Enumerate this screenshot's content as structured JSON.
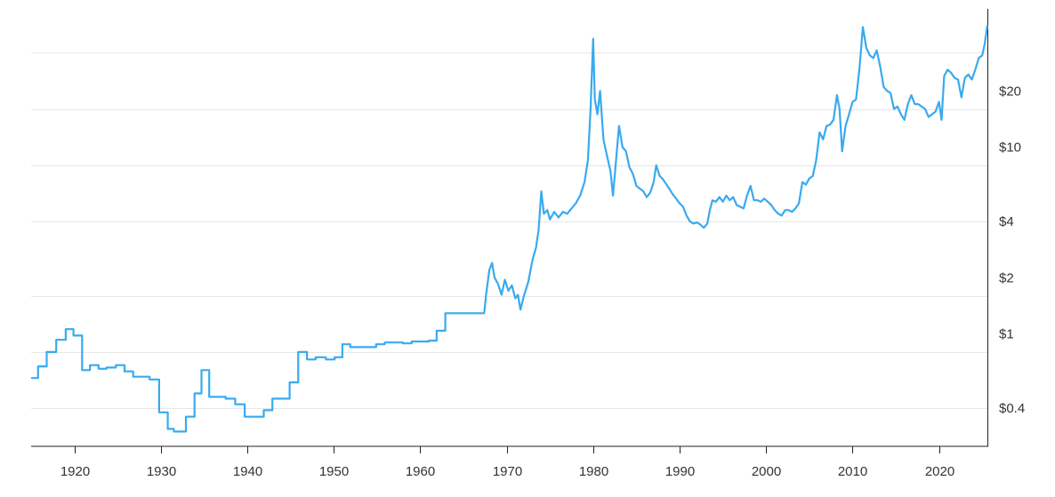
{
  "chart_data": {
    "type": "line",
    "title": "",
    "xlabel": "",
    "ylabel": "",
    "y_scale": "log",
    "x_range": [
      1915,
      2025.6
    ],
    "y_range": [
      0.25,
      55
    ],
    "x_ticks": [
      {
        "value": 1920,
        "label": "1920"
      },
      {
        "value": 1930,
        "label": "1930"
      },
      {
        "value": 1940,
        "label": "1940"
      },
      {
        "value": 1950,
        "label": "1950"
      },
      {
        "value": 1960,
        "label": "1960"
      },
      {
        "value": 1970,
        "label": "1970"
      },
      {
        "value": 1980,
        "label": "1980"
      },
      {
        "value": 1990,
        "label": "1990"
      },
      {
        "value": 2000,
        "label": "2000"
      },
      {
        "value": 2010,
        "label": "2010"
      },
      {
        "value": 2020,
        "label": "2020"
      }
    ],
    "y_ticks": [
      {
        "value": 0.4,
        "label": "$0.4"
      },
      {
        "value": 1,
        "label": "$1"
      },
      {
        "value": 2,
        "label": "$2"
      },
      {
        "value": 4,
        "label": "$4"
      },
      {
        "value": 10,
        "label": "$10"
      },
      {
        "value": 20,
        "label": "$20"
      }
    ],
    "grid_values": [
      0.4,
      0.8,
      1.6,
      4,
      8,
      16,
      32
    ],
    "grid": true,
    "y_axis_position": "right",
    "line_color": "#38aaef",
    "series": [
      {
        "values": [
          [
            1915.0,
            0.58
          ],
          [
            1915.8,
            0.58
          ],
          [
            1915.8,
            0.67
          ],
          [
            1916.8,
            0.67
          ],
          [
            1916.8,
            0.8
          ],
          [
            1917.9,
            0.8
          ],
          [
            1917.9,
            0.93
          ],
          [
            1919.0,
            0.93
          ],
          [
            1919.0,
            1.06
          ],
          [
            1919.9,
            1.06
          ],
          [
            1919.9,
            0.98
          ],
          [
            1920.9,
            0.98
          ],
          [
            1920.9,
            0.64
          ],
          [
            1921.8,
            0.64
          ],
          [
            1921.8,
            0.68
          ],
          [
            1922.8,
            0.68
          ],
          [
            1922.8,
            0.65
          ],
          [
            1923.7,
            0.65
          ],
          [
            1923.7,
            0.66
          ],
          [
            1924.8,
            0.66
          ],
          [
            1924.8,
            0.68
          ],
          [
            1925.8,
            0.68
          ],
          [
            1925.8,
            0.63
          ],
          [
            1926.8,
            0.63
          ],
          [
            1926.8,
            0.59
          ],
          [
            1928.7,
            0.59
          ],
          [
            1928.7,
            0.57
          ],
          [
            1929.8,
            0.57
          ],
          [
            1929.8,
            0.38
          ],
          [
            1930.8,
            0.38
          ],
          [
            1930.8,
            0.31
          ],
          [
            1931.5,
            0.31
          ],
          [
            1931.5,
            0.3
          ],
          [
            1932.9,
            0.3
          ],
          [
            1932.9,
            0.36
          ],
          [
            1933.9,
            0.36
          ],
          [
            1933.9,
            0.48
          ],
          [
            1934.7,
            0.48
          ],
          [
            1934.7,
            0.64
          ],
          [
            1935.6,
            0.64
          ],
          [
            1935.6,
            0.46
          ],
          [
            1937.5,
            0.46
          ],
          [
            1937.5,
            0.45
          ],
          [
            1938.6,
            0.45
          ],
          [
            1938.6,
            0.42
          ],
          [
            1939.7,
            0.42
          ],
          [
            1939.7,
            0.36
          ],
          [
            1941.9,
            0.36
          ],
          [
            1941.9,
            0.39
          ],
          [
            1942.9,
            0.39
          ],
          [
            1942.9,
            0.45
          ],
          [
            1944.9,
            0.45
          ],
          [
            1944.9,
            0.55
          ],
          [
            1945.9,
            0.55
          ],
          [
            1945.9,
            0.8
          ],
          [
            1946.9,
            0.8
          ],
          [
            1946.9,
            0.73
          ],
          [
            1947.9,
            0.73
          ],
          [
            1947.9,
            0.75
          ],
          [
            1949.1,
            0.75
          ],
          [
            1949.1,
            0.73
          ],
          [
            1950.1,
            0.73
          ],
          [
            1950.1,
            0.75
          ],
          [
            1951.0,
            0.75
          ],
          [
            1951.0,
            0.88
          ],
          [
            1951.9,
            0.88
          ],
          [
            1951.9,
            0.85
          ],
          [
            1954.9,
            0.85
          ],
          [
            1954.9,
            0.88
          ],
          [
            1955.9,
            0.88
          ],
          [
            1955.9,
            0.9
          ],
          [
            1958.0,
            0.9
          ],
          [
            1958.0,
            0.89
          ],
          [
            1959.0,
            0.89
          ],
          [
            1959.0,
            0.91
          ],
          [
            1961.0,
            0.91
          ],
          [
            1961.0,
            0.92
          ],
          [
            1961.9,
            0.92
          ],
          [
            1961.9,
            1.04
          ],
          [
            1962.9,
            1.04
          ],
          [
            1962.9,
            1.29
          ],
          [
            1967.4,
            1.29
          ],
          [
            1967.6,
            1.6
          ],
          [
            1968.0,
            2.2
          ],
          [
            1968.3,
            2.4
          ],
          [
            1968.6,
            2.0
          ],
          [
            1969.0,
            1.85
          ],
          [
            1969.4,
            1.62
          ],
          [
            1969.8,
            1.95
          ],
          [
            1970.2,
            1.7
          ],
          [
            1970.6,
            1.82
          ],
          [
            1971.0,
            1.55
          ],
          [
            1971.3,
            1.62
          ],
          [
            1971.6,
            1.35
          ],
          [
            1972.0,
            1.6
          ],
          [
            1972.5,
            1.9
          ],
          [
            1973.0,
            2.5
          ],
          [
            1973.4,
            2.9
          ],
          [
            1973.7,
            3.6
          ],
          [
            1974.0,
            5.8
          ],
          [
            1974.3,
            4.4
          ],
          [
            1974.7,
            4.6
          ],
          [
            1975.0,
            4.1
          ],
          [
            1975.5,
            4.5
          ],
          [
            1976.0,
            4.2
          ],
          [
            1976.5,
            4.5
          ],
          [
            1977.0,
            4.4
          ],
          [
            1977.5,
            4.7
          ],
          [
            1978.0,
            5.0
          ],
          [
            1978.5,
            5.5
          ],
          [
            1979.0,
            6.5
          ],
          [
            1979.4,
            8.5
          ],
          [
            1979.7,
            16.0
          ],
          [
            1980.0,
            38.0
          ],
          [
            1980.2,
            18.0
          ],
          [
            1980.5,
            15.0
          ],
          [
            1980.8,
            20.0
          ],
          [
            1981.2,
            11.0
          ],
          [
            1981.6,
            9.0
          ],
          [
            1982.0,
            7.5
          ],
          [
            1982.3,
            5.5
          ],
          [
            1982.7,
            9.0
          ],
          [
            1983.0,
            13.0
          ],
          [
            1983.4,
            10.0
          ],
          [
            1983.8,
            9.5
          ],
          [
            1984.2,
            7.8
          ],
          [
            1984.6,
            7.2
          ],
          [
            1985.0,
            6.2
          ],
          [
            1985.4,
            6.0
          ],
          [
            1985.8,
            5.8
          ],
          [
            1986.2,
            5.4
          ],
          [
            1986.6,
            5.7
          ],
          [
            1987.0,
            6.5
          ],
          [
            1987.3,
            8.0
          ],
          [
            1987.7,
            7.0
          ],
          [
            1988.0,
            6.8
          ],
          [
            1988.4,
            6.4
          ],
          [
            1988.8,
            6.0
          ],
          [
            1989.2,
            5.6
          ],
          [
            1989.6,
            5.3
          ],
          [
            1990.0,
            5.0
          ],
          [
            1990.4,
            4.8
          ],
          [
            1990.8,
            4.3
          ],
          [
            1991.2,
            4.0
          ],
          [
            1991.6,
            3.9
          ],
          [
            1992.0,
            3.95
          ],
          [
            1992.4,
            3.85
          ],
          [
            1992.8,
            3.7
          ],
          [
            1993.2,
            3.9
          ],
          [
            1993.5,
            4.6
          ],
          [
            1993.8,
            5.2
          ],
          [
            1994.2,
            5.1
          ],
          [
            1994.6,
            5.4
          ],
          [
            1995.0,
            5.1
          ],
          [
            1995.4,
            5.5
          ],
          [
            1995.8,
            5.2
          ],
          [
            1996.2,
            5.4
          ],
          [
            1996.6,
            4.9
          ],
          [
            1997.0,
            4.8
          ],
          [
            1997.4,
            4.7
          ],
          [
            1997.8,
            5.5
          ],
          [
            1998.2,
            6.2
          ],
          [
            1998.6,
            5.2
          ],
          [
            1999.0,
            5.2
          ],
          [
            1999.4,
            5.1
          ],
          [
            1999.8,
            5.3
          ],
          [
            2000.2,
            5.1
          ],
          [
            2000.6,
            4.9
          ],
          [
            2001.0,
            4.6
          ],
          [
            2001.4,
            4.4
          ],
          [
            2001.8,
            4.3
          ],
          [
            2002.2,
            4.6
          ],
          [
            2002.6,
            4.6
          ],
          [
            2003.0,
            4.5
          ],
          [
            2003.4,
            4.7
          ],
          [
            2003.8,
            5.0
          ],
          [
            2004.2,
            6.5
          ],
          [
            2004.6,
            6.3
          ],
          [
            2005.0,
            6.8
          ],
          [
            2005.4,
            7.0
          ],
          [
            2005.8,
            8.5
          ],
          [
            2006.2,
            12.0
          ],
          [
            2006.6,
            11.0
          ],
          [
            2007.0,
            13.0
          ],
          [
            2007.4,
            13.2
          ],
          [
            2007.8,
            14.0
          ],
          [
            2008.2,
            19.0
          ],
          [
            2008.5,
            16.0
          ],
          [
            2008.8,
            9.5
          ],
          [
            2009.2,
            13.0
          ],
          [
            2009.6,
            15.0
          ],
          [
            2010.0,
            17.5
          ],
          [
            2010.4,
            18.0
          ],
          [
            2010.8,
            26.0
          ],
          [
            2011.2,
            44.0
          ],
          [
            2011.6,
            34.0
          ],
          [
            2012.0,
            31.0
          ],
          [
            2012.4,
            30.0
          ],
          [
            2012.8,
            33.0
          ],
          [
            2013.2,
            27.0
          ],
          [
            2013.6,
            21.0
          ],
          [
            2014.0,
            20.0
          ],
          [
            2014.4,
            19.5
          ],
          [
            2014.8,
            16.0
          ],
          [
            2015.2,
            16.5
          ],
          [
            2015.6,
            15.0
          ],
          [
            2016.0,
            14.0
          ],
          [
            2016.4,
            17.0
          ],
          [
            2016.8,
            19.0
          ],
          [
            2017.2,
            17.0
          ],
          [
            2017.6,
            17.0
          ],
          [
            2018.0,
            16.5
          ],
          [
            2018.4,
            16.0
          ],
          [
            2018.8,
            14.5
          ],
          [
            2019.2,
            15.0
          ],
          [
            2019.6,
            15.5
          ],
          [
            2020.0,
            17.5
          ],
          [
            2020.3,
            14.0
          ],
          [
            2020.6,
            24.0
          ],
          [
            2021.0,
            26.0
          ],
          [
            2021.4,
            25.0
          ],
          [
            2021.8,
            23.5
          ],
          [
            2022.2,
            23.0
          ],
          [
            2022.6,
            18.5
          ],
          [
            2023.0,
            23.5
          ],
          [
            2023.4,
            24.5
          ],
          [
            2023.8,
            23.0
          ],
          [
            2024.2,
            26.0
          ],
          [
            2024.6,
            30.0
          ],
          [
            2025.0,
            31.0
          ],
          [
            2025.3,
            36.0
          ],
          [
            2025.6,
            45.0
          ]
        ]
      }
    ]
  }
}
